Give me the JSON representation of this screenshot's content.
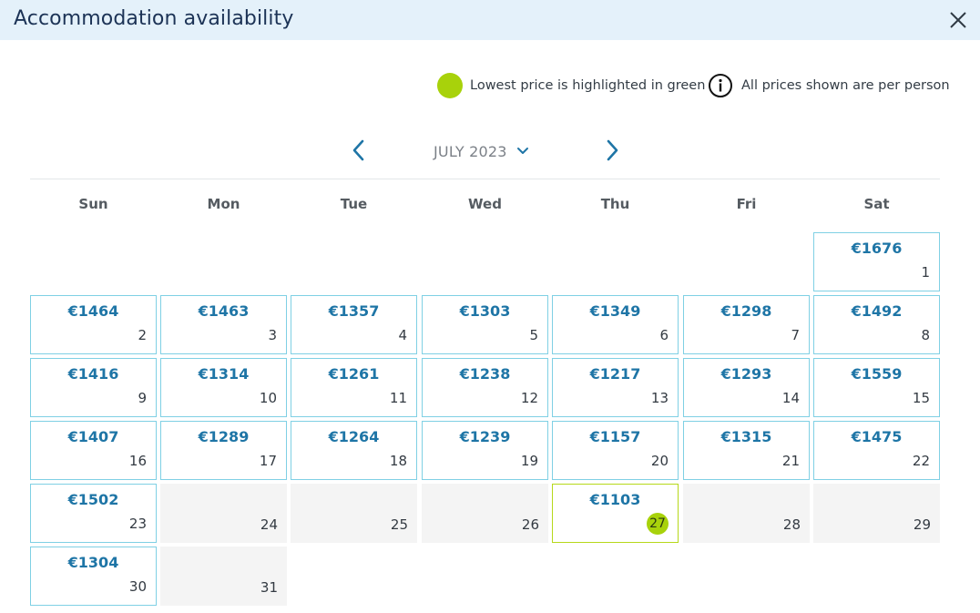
{
  "header": {
    "title": "Accommodation availability"
  },
  "legend": {
    "lowest_label": "Lowest price is highlighted in green",
    "per_person_label": "All prices shown are per person"
  },
  "calendar": {
    "month_label": "JULY 2023",
    "weekdays": [
      "Sun",
      "Mon",
      "Tue",
      "Wed",
      "Thu",
      "Fri",
      "Sat"
    ],
    "days": [
      {
        "day": "1",
        "price": "€1676",
        "state": "priced"
      },
      {
        "day": "2",
        "price": "€1464",
        "state": "priced"
      },
      {
        "day": "3",
        "price": "€1463",
        "state": "priced"
      },
      {
        "day": "4",
        "price": "€1357",
        "state": "priced"
      },
      {
        "day": "5",
        "price": "€1303",
        "state": "priced"
      },
      {
        "day": "6",
        "price": "€1349",
        "state": "priced"
      },
      {
        "day": "7",
        "price": "€1298",
        "state": "priced"
      },
      {
        "day": "8",
        "price": "€1492",
        "state": "priced"
      },
      {
        "day": "9",
        "price": "€1416",
        "state": "priced"
      },
      {
        "day": "10",
        "price": "€1314",
        "state": "priced"
      },
      {
        "day": "11",
        "price": "€1261",
        "state": "priced"
      },
      {
        "day": "12",
        "price": "€1238",
        "state": "priced"
      },
      {
        "day": "13",
        "price": "€1217",
        "state": "priced"
      },
      {
        "day": "14",
        "price": "€1293",
        "state": "priced"
      },
      {
        "day": "15",
        "price": "€1559",
        "state": "priced"
      },
      {
        "day": "16",
        "price": "€1407",
        "state": "priced"
      },
      {
        "day": "17",
        "price": "€1289",
        "state": "priced"
      },
      {
        "day": "18",
        "price": "€1264",
        "state": "priced"
      },
      {
        "day": "19",
        "price": "€1239",
        "state": "priced"
      },
      {
        "day": "20",
        "price": "€1157",
        "state": "priced"
      },
      {
        "day": "21",
        "price": "€1315",
        "state": "priced"
      },
      {
        "day": "22",
        "price": "€1475",
        "state": "priced"
      },
      {
        "day": "23",
        "price": "€1502",
        "state": "priced"
      },
      {
        "day": "24",
        "price": "",
        "state": "empty"
      },
      {
        "day": "25",
        "price": "",
        "state": "empty"
      },
      {
        "day": "26",
        "price": "",
        "state": "empty"
      },
      {
        "day": "27",
        "price": "€1103",
        "state": "lowest"
      },
      {
        "day": "28",
        "price": "",
        "state": "empty"
      },
      {
        "day": "29",
        "price": "",
        "state": "empty"
      },
      {
        "day": "30",
        "price": "€1304",
        "state": "priced"
      },
      {
        "day": "31",
        "price": "",
        "state": "empty"
      }
    ]
  },
  "colors": {
    "header_bg": "#e4f1fa",
    "title": "#1c3356",
    "price": "#1e75a6",
    "cell_border": "#7fd0e4",
    "lowest_highlight": "#a8d20b",
    "empty_cell": "#f4f4f4"
  },
  "icons": {
    "close": "close-icon",
    "legend_dot": "lowest-price-dot-icon",
    "info": "info-icon",
    "prev": "chevron-left-icon",
    "next": "chevron-right-icon",
    "month_dropdown": "chevron-down-icon"
  }
}
